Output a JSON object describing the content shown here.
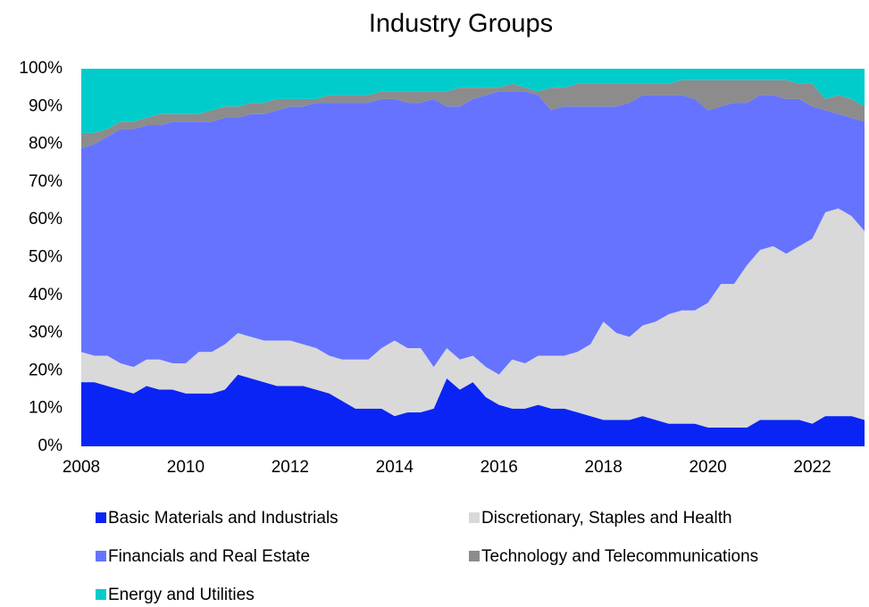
{
  "chart_data": {
    "type": "stacked_area",
    "title": "Industry Groups",
    "x": [
      2008,
      2008.25,
      2008.5,
      2008.75,
      2009,
      2009.25,
      2009.5,
      2009.75,
      2010,
      2010.25,
      2010.5,
      2010.75,
      2011,
      2011.25,
      2011.5,
      2011.75,
      2012,
      2012.25,
      2012.5,
      2012.75,
      2013,
      2013.25,
      2013.5,
      2013.75,
      2014,
      2014.25,
      2014.5,
      2014.75,
      2015,
      2015.25,
      2015.5,
      2015.75,
      2016,
      2016.25,
      2016.5,
      2016.75,
      2017,
      2017.25,
      2017.5,
      2017.75,
      2018,
      2018.25,
      2018.5,
      2018.75,
      2019,
      2019.25,
      2019.5,
      2019.75,
      2020,
      2020.25,
      2020.5,
      2020.75,
      2021,
      2021.25,
      2021.5,
      2021.75,
      2022,
      2022.25,
      2022.5,
      2022.75,
      2023
    ],
    "series": [
      {
        "name": "Basic Materials and Industrials",
        "color": "#0a24f5",
        "values": [
          17,
          17,
          16,
          15,
          14,
          16,
          15,
          15,
          14,
          14,
          14,
          15,
          19,
          18,
          17,
          16,
          16,
          16,
          15,
          14,
          12,
          10,
          10,
          10,
          8,
          9,
          9,
          10,
          18,
          15,
          17,
          13,
          11,
          10,
          10,
          11,
          10,
          10,
          9,
          8,
          7,
          7,
          7,
          8,
          7,
          6,
          6,
          6,
          5,
          5,
          5,
          5,
          7,
          7,
          7,
          7,
          6,
          8,
          8,
          8,
          7
        ]
      },
      {
        "name": "Discretionary, Staples and Health",
        "color": "#d9d9d9",
        "values": [
          8,
          7,
          8,
          7,
          7,
          7,
          8,
          7,
          8,
          11,
          11,
          12,
          11,
          11,
          11,
          12,
          12,
          11,
          11,
          10,
          11,
          13,
          13,
          16,
          20,
          17,
          17,
          11,
          8,
          8,
          7,
          8,
          8,
          13,
          12,
          13,
          14,
          14,
          16,
          19,
          26,
          23,
          22,
          24,
          26,
          29,
          30,
          30,
          33,
          38,
          38,
          43,
          45,
          46,
          44,
          46,
          49,
          54,
          55,
          53,
          50
        ]
      },
      {
        "name": "Financials and Real Estate",
        "color": "#6673ff",
        "values": [
          54,
          56,
          58,
          62,
          63,
          62,
          62,
          64,
          64,
          61,
          61,
          60,
          57,
          59,
          60,
          61,
          62,
          63,
          65,
          67,
          68,
          68,
          68,
          66,
          64,
          65,
          65,
          71,
          64,
          67,
          68,
          72,
          75,
          71,
          72,
          69,
          65,
          66,
          65,
          63,
          57,
          60,
          62,
          61,
          60,
          58,
          57,
          56,
          51,
          47,
          48,
          43,
          41,
          40,
          41,
          39,
          35,
          27,
          25,
          26,
          29
        ]
      },
      {
        "name": "Technology and Telecommunications",
        "color": "#8c8c8c",
        "values": [
          4,
          3,
          2,
          2,
          2,
          2,
          3,
          2,
          2,
          2,
          3,
          3,
          3,
          3,
          3,
          3,
          2,
          2,
          1,
          2,
          2,
          2,
          2,
          2,
          2,
          3,
          3,
          2,
          4,
          5,
          3,
          2,
          1,
          2,
          1,
          1,
          6,
          5,
          6,
          6,
          6,
          6,
          5,
          3,
          3,
          3,
          4,
          5,
          8,
          7,
          6,
          6,
          4,
          4,
          5,
          4,
          6,
          3,
          5,
          5,
          4
        ]
      },
      {
        "name": "Energy and Utilities",
        "color": "#00cccc",
        "values": [
          17,
          17,
          16,
          14,
          14,
          13,
          12,
          12,
          12,
          12,
          11,
          10,
          10,
          9,
          9,
          8,
          8,
          8,
          8,
          7,
          7,
          7,
          7,
          6,
          6,
          6,
          6,
          6,
          6,
          5,
          5,
          5,
          5,
          4,
          5,
          6,
          5,
          5,
          4,
          4,
          4,
          4,
          4,
          4,
          4,
          4,
          3,
          3,
          3,
          3,
          3,
          3,
          3,
          3,
          3,
          4,
          4,
          8,
          7,
          8,
          10
        ]
      }
    ],
    "xlim": [
      2008,
      2023
    ],
    "xticks": [
      2008,
      2010,
      2012,
      2014,
      2016,
      2018,
      2020,
      2022
    ],
    "ylim": [
      0,
      100
    ],
    "yticks": [
      {
        "value": 0,
        "label": "0%"
      },
      {
        "value": 10,
        "label": "10%"
      },
      {
        "value": 20,
        "label": "20%"
      },
      {
        "value": 30,
        "label": "30%"
      },
      {
        "value": 40,
        "label": "40%"
      },
      {
        "value": 50,
        "label": "50%"
      },
      {
        "value": 60,
        "label": "60%"
      },
      {
        "value": 70,
        "label": "70%"
      },
      {
        "value": 80,
        "label": "80%"
      },
      {
        "value": 90,
        "label": "90%"
      },
      {
        "value": 100,
        "label": "100%"
      }
    ],
    "grid": false,
    "legend": "bottom"
  }
}
